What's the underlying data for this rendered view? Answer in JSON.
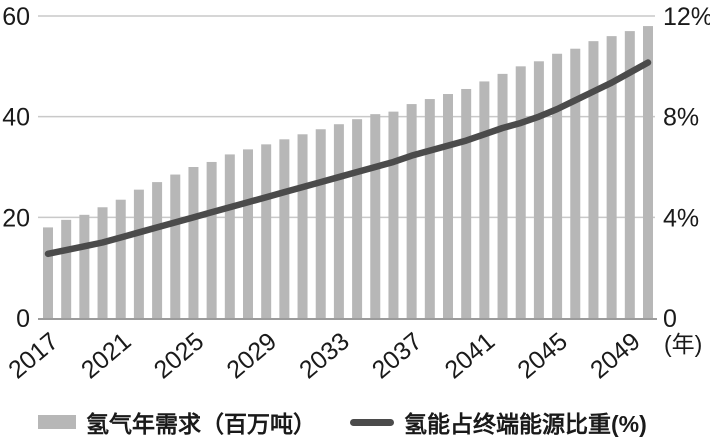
{
  "chart_data": {
    "type": "bar",
    "title": "",
    "x": [
      2017,
      2018,
      2019,
      2020,
      2021,
      2022,
      2023,
      2024,
      2025,
      2026,
      2027,
      2028,
      2029,
      2030,
      2031,
      2032,
      2033,
      2034,
      2035,
      2036,
      2037,
      2038,
      2039,
      2040,
      2041,
      2042,
      2043,
      2044,
      2045,
      2046,
      2047,
      2048,
      2049,
      2050
    ],
    "series": [
      {
        "name": "氢气年需求（百万吨）",
        "type": "bar",
        "yaxis": "left",
        "values": [
          18,
          19.5,
          20.5,
          22,
          23.5,
          25.5,
          27,
          28.5,
          30,
          31,
          32.5,
          33.5,
          34.5,
          35.5,
          36.5,
          37.5,
          38.5,
          39.5,
          40.5,
          41,
          42.5,
          43.5,
          44.5,
          45.5,
          47,
          48.5,
          50,
          51,
          52.5,
          53.5,
          55,
          56,
          57,
          58
        ]
      },
      {
        "name": "氢能占终端能源比重(%)",
        "type": "line",
        "yaxis": "right",
        "values": [
          2.55,
          2.7,
          2.85,
          3.0,
          3.2,
          3.4,
          3.6,
          3.8,
          4.0,
          4.2,
          4.4,
          4.6,
          4.8,
          5.0,
          5.2,
          5.4,
          5.6,
          5.8,
          6.0,
          6.2,
          6.45,
          6.65,
          6.85,
          7.05,
          7.3,
          7.55,
          7.75,
          8.0,
          8.3,
          8.65,
          9.0,
          9.35,
          9.75,
          10.15
        ]
      }
    ],
    "left_axis": {
      "range": [
        0,
        60
      ],
      "ticks": [
        0,
        20,
        40,
        60
      ],
      "tick_labels": [
        "0",
        "20",
        "40",
        "60"
      ]
    },
    "right_axis": {
      "range": [
        0,
        12
      ],
      "ticks": [
        0,
        4,
        8,
        12
      ],
      "tick_labels": [
        "0",
        "4%",
        "8%",
        "12%"
      ]
    },
    "x_tick_years": [
      "2017",
      "2021",
      "2025",
      "2029",
      "2033",
      "2037",
      "2041",
      "2045",
      "2049"
    ],
    "x_axis_unit": "(年)",
    "grid": true,
    "legend_position": "bottom"
  },
  "colors": {
    "bar": "#b7b7b7",
    "line": "#4b4b4b",
    "grid": "#c9c9c9",
    "axis_line": "#9c9c9c",
    "text": "#1a1a1a"
  },
  "legend": {
    "items": [
      {
        "label": "氢气年需求（百万吨）",
        "swatch": "bar"
      },
      {
        "label": "氢能占终端能源比重(%)",
        "swatch": "line"
      }
    ]
  }
}
